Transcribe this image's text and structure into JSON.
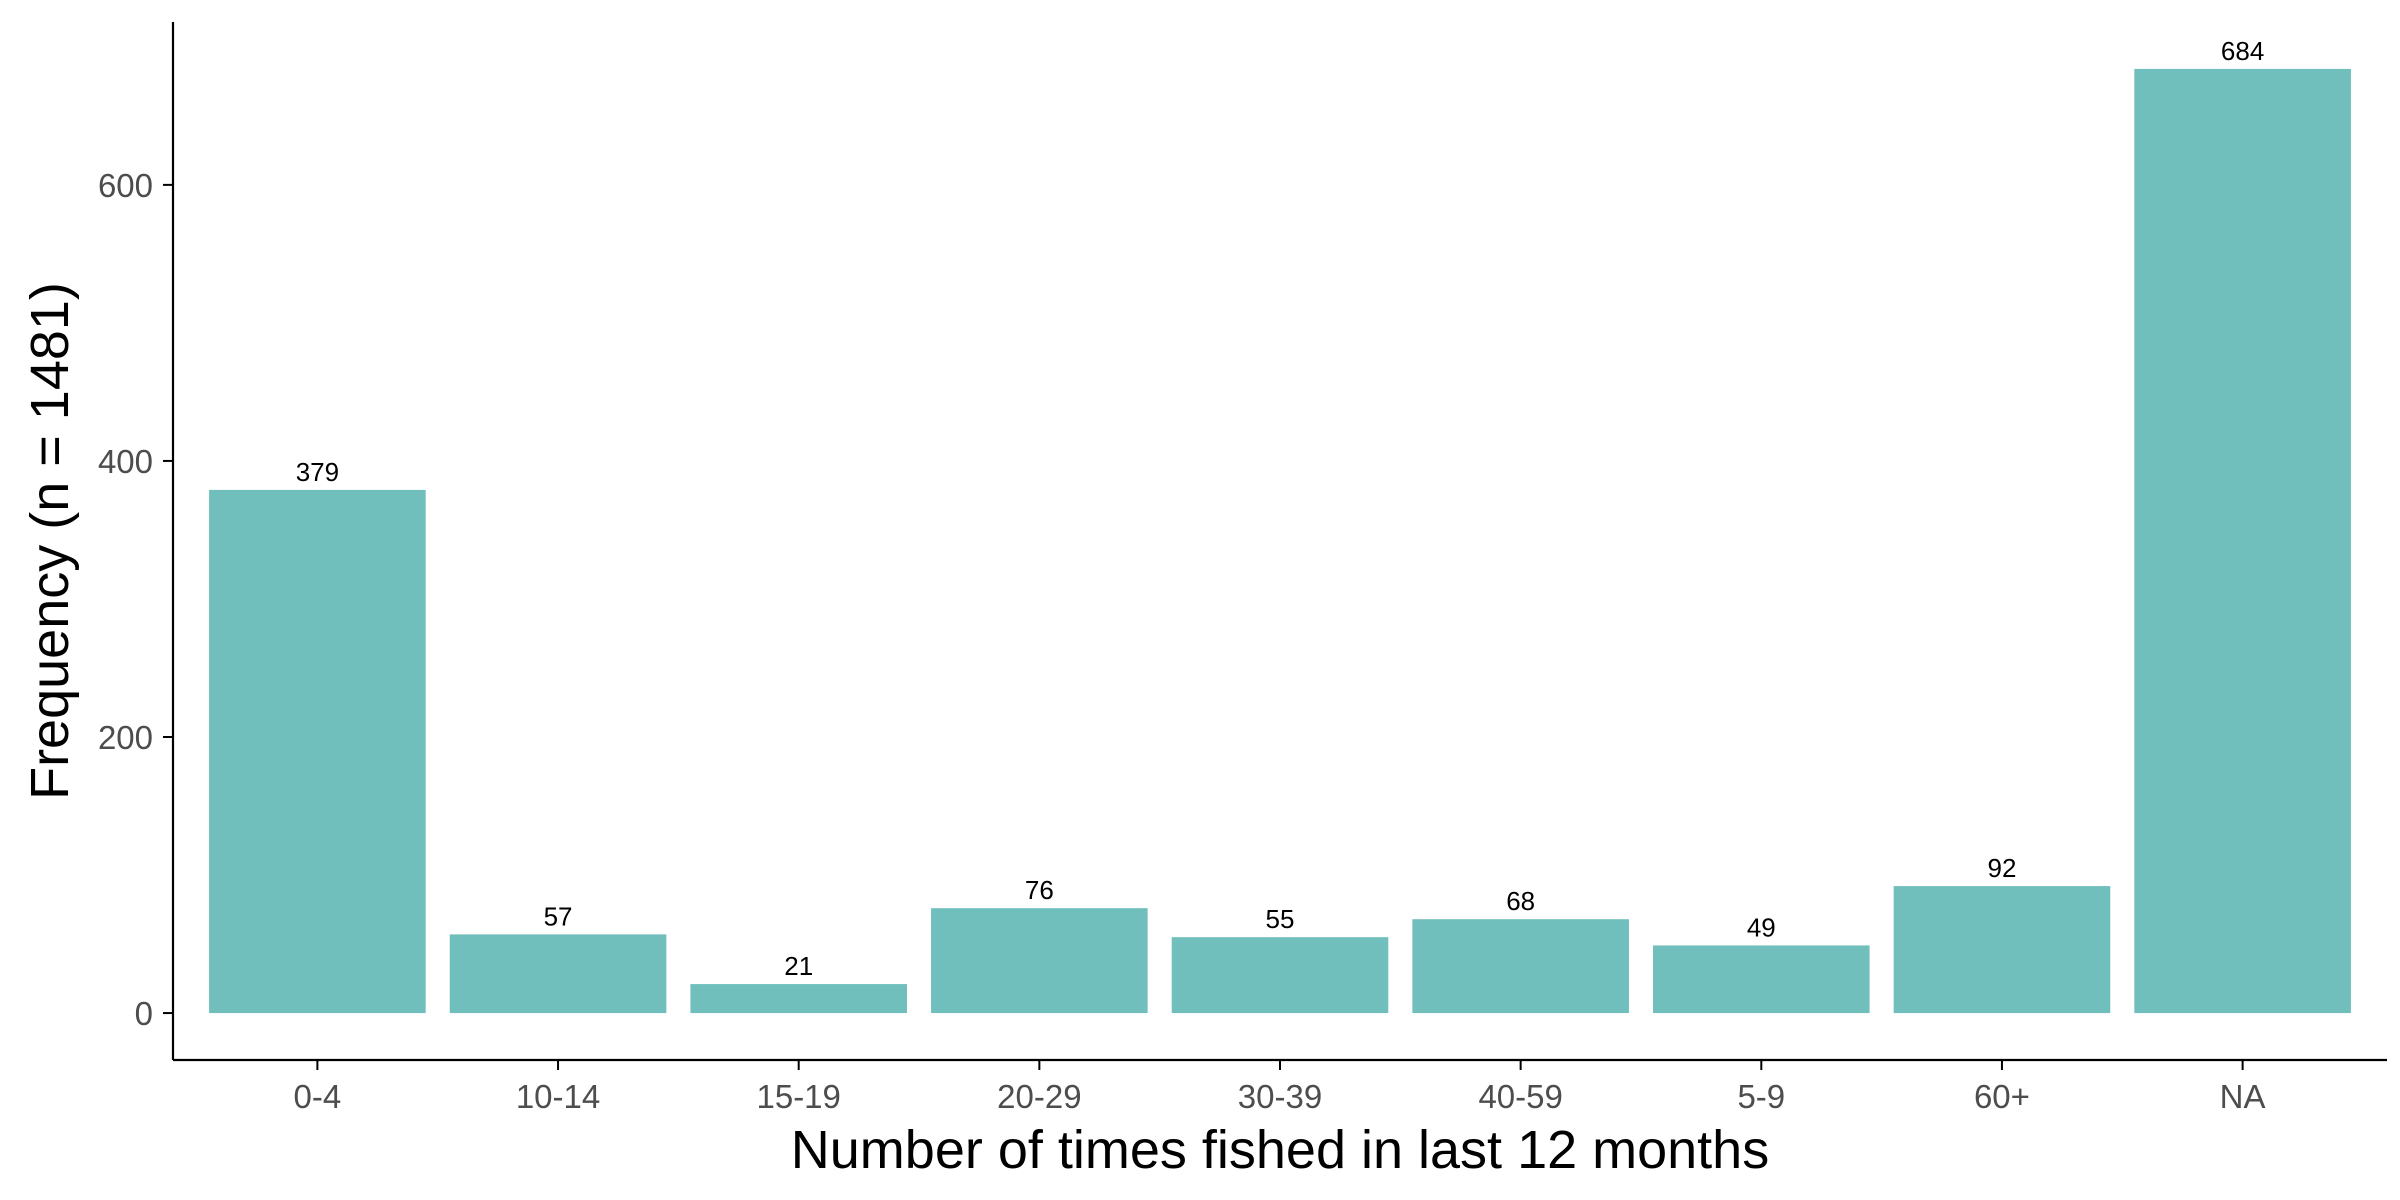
{
  "chart_data": {
    "type": "bar",
    "title": "",
    "xlabel": "Number of times fished in last 12 months",
    "ylabel": "Frequency (n = 1481)",
    "categories": [
      "0-4",
      "10-14",
      "15-19",
      "20-29",
      "30-39",
      "40-59",
      "5-9",
      "60+",
      "NA"
    ],
    "values": [
      379,
      57,
      21,
      76,
      55,
      68,
      49,
      92,
      684
    ],
    "data_labels": [
      "379",
      "57",
      "21",
      "76",
      "55",
      "68",
      "49",
      "92",
      "684"
    ],
    "y_ticks": [
      0,
      200,
      400,
      600
    ],
    "y_tick_labels": [
      "0",
      "200",
      "400",
      "600"
    ],
    "ylim": [
      -34,
      718
    ],
    "bar_color": "#71BFBC",
    "grid": false,
    "legend": "none"
  }
}
